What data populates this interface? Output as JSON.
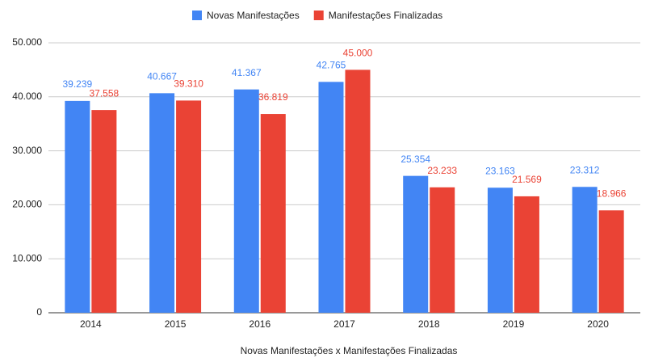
{
  "chart_data": {
    "type": "bar",
    "x_label": "Novas Manifestações x Manifestações Finalizadas",
    "categories": [
      "2014",
      "2015",
      "2016",
      "2017",
      "2018",
      "2019",
      "2020"
    ],
    "series": [
      {
        "name": "Novas Manifestações",
        "color": "#4285f4",
        "values": [
          39239,
          40667,
          41367,
          42765,
          25354,
          23163,
          23312
        ],
        "value_labels": [
          "39.239",
          "40.667",
          "41.367",
          "42.765",
          "25.354",
          "23.163",
          "23.312"
        ]
      },
      {
        "name": "Manifestações Finalizadas",
        "color": "#ea4335",
        "values": [
          37558,
          39310,
          36819,
          45000,
          23233,
          21569,
          18966
        ],
        "value_labels": [
          "37.558",
          "39.310",
          "36.819",
          "45.000",
          "23.233",
          "21.569",
          "18.966"
        ]
      }
    ],
    "ylim": [
      0,
      50000
    ],
    "yticks": [
      0,
      {
        "value": 10000,
        "label": "10.000"
      },
      {
        "value": 20000,
        "label": "20.000"
      },
      {
        "value": 30000,
        "label": "30.000"
      },
      {
        "value": 40000,
        "label": "40.000"
      },
      {
        "value": 50000,
        "label": "50.000"
      }
    ],
    "grid": true,
    "legend": "top"
  }
}
